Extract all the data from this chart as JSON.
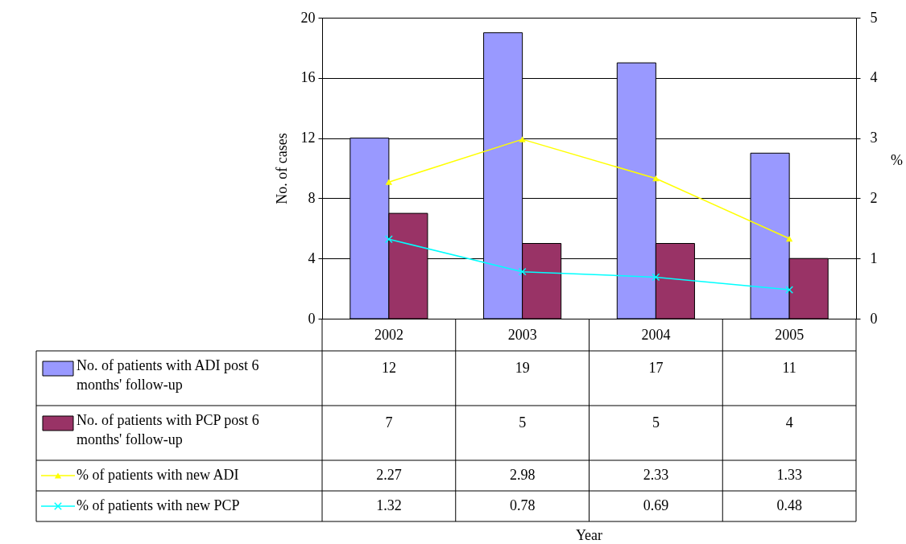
{
  "chart_data": {
    "type": "bar",
    "categories": [
      "2002",
      "2003",
      "2004",
      "2005"
    ],
    "series": [
      {
        "name": "No. of patients with ADI post 6 months' follow-up",
        "color": "#9999ff",
        "values": [
          12,
          19,
          17,
          11
        ]
      },
      {
        "name": "No. of patients with PCP post 6 months' follow-up",
        "color": "#993366",
        "values": [
          7,
          5,
          5,
          4
        ]
      },
      {
        "name": "% of patients with new ADI",
        "type": "line",
        "axis": "y2",
        "color": "#ffff00",
        "marker": "triangle",
        "values": [
          2.27,
          2.98,
          2.33,
          1.33
        ]
      },
      {
        "name": "% of patients with new PCP",
        "type": "line",
        "axis": "y2",
        "color": "#00ffff",
        "marker": "cross",
        "values": [
          1.32,
          0.78,
          0.69,
          0.48
        ]
      }
    ],
    "annotations": [
      "Year"
    ],
    "ylabel": "No. of cases",
    "y2label": "%",
    "ylim": [
      0,
      20
    ],
    "yticks": [
      0,
      4,
      8,
      12,
      16,
      20
    ],
    "y2lim": [
      0,
      5
    ],
    "y2ticks": [
      0,
      1,
      2,
      3,
      4,
      5
    ],
    "grid": "y",
    "legend": "bottom",
    "data_labels": true
  }
}
